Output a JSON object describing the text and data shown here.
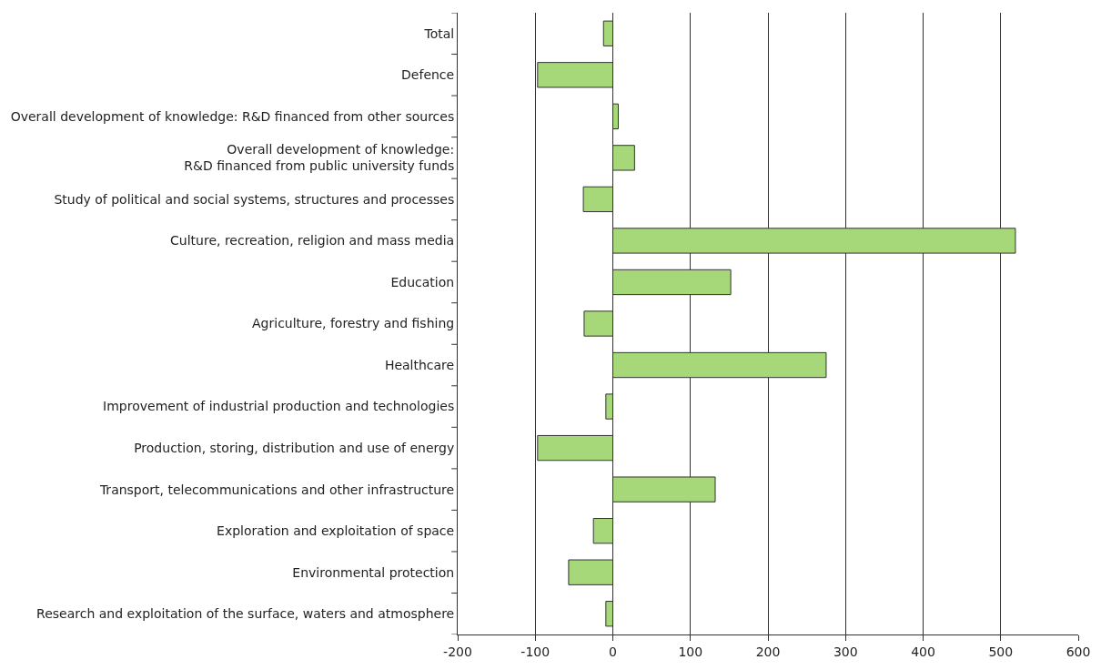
{
  "chart_data": {
    "type": "bar",
    "orientation": "horizontal",
    "categories": [
      "Total",
      "Defence",
      "Overall development of knowledge: R&D financed from other sources",
      "Overall development of knowledge:\nR&D financed from public university funds",
      "Study of political and social systems, structures and processes",
      "Culture, recreation, religion and mass media",
      "Education",
      "Agriculture, forestry and fishing",
      "Healthcare",
      "Improvement of industrial production and technologies",
      "Production, storing, distribution and use of energy",
      "Transport, telecommunications and other infrastructure",
      "Exploration and exploitation of space",
      "Environmental protection",
      "Research and exploitation of the surface, waters and atmosphere"
    ],
    "values": [
      -12,
      -97,
      7,
      28,
      -38,
      519,
      152,
      -37,
      275,
      -9,
      -97,
      132,
      -25,
      -57,
      -9
    ],
    "color": "#a6d87a",
    "xlim": [
      -200,
      600
    ],
    "xticks": [
      -200,
      -100,
      0,
      100,
      200,
      300,
      400,
      500,
      600
    ],
    "grid": "x",
    "legend": false
  }
}
